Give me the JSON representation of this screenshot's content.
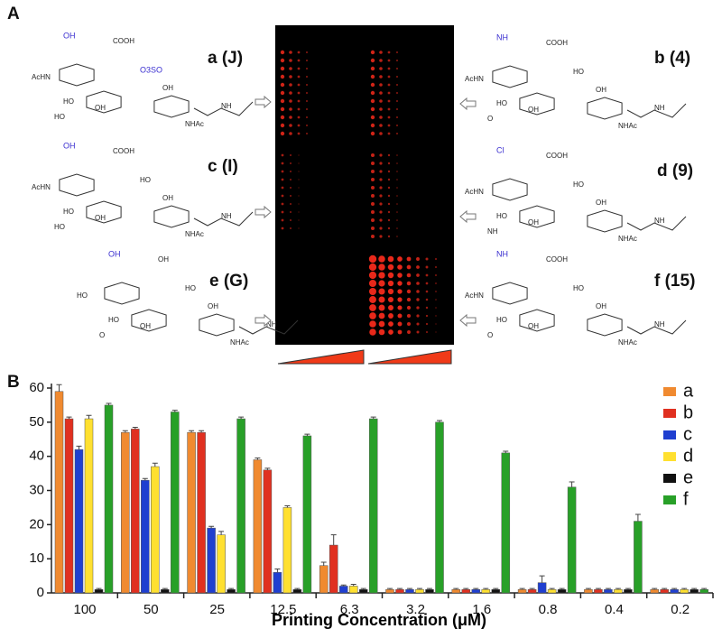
{
  "panel_a": {
    "label": "A",
    "compounds": [
      {
        "name": "a (J)",
        "groups": [
          "OH",
          "COOH",
          "AcHN",
          "HO",
          "OH",
          "O3SO",
          "NHAc",
          "NH",
          "HO",
          "OH"
        ]
      },
      {
        "name": "b (4)",
        "groups": [
          "NH",
          "COOH",
          "AcHN",
          "HO",
          "OH",
          "HO",
          "NHAc",
          "NH",
          "O",
          "OH"
        ]
      },
      {
        "name": "c (I)",
        "groups": [
          "OH",
          "COOH",
          "AcHN",
          "HO",
          "OH",
          "HO",
          "NHAc",
          "NH",
          "HO",
          "OH"
        ]
      },
      {
        "name": "d (9)",
        "groups": [
          "Cl",
          "COOH",
          "AcHN",
          "HO",
          "OH",
          "HO",
          "NHAc",
          "NH",
          "NH",
          "OH"
        ]
      },
      {
        "name": "e (G)",
        "groups": [
          "OH",
          "OH",
          "HO",
          "HO",
          "OH",
          "HO",
          "NHAc",
          "NH",
          "O",
          "OH"
        ]
      },
      {
        "name": "f (15)",
        "groups": [
          "NH",
          "COOH",
          "AcHN",
          "HO",
          "OH",
          "HO",
          "NHAc",
          "NH",
          "O",
          "OH"
        ]
      }
    ]
  },
  "chart_data": {
    "type": "bar",
    "panel_label": "B",
    "x_label": "Printing Concentration (μM)",
    "categories": [
      "100",
      "50",
      "25",
      "12.5",
      "6.3",
      "3.2",
      "1.6",
      "0.8",
      "0.4",
      "0.2"
    ],
    "series": [
      {
        "name": "a",
        "color": "#f08a30",
        "values": [
          59,
          47,
          47,
          39,
          8,
          1,
          1,
          1,
          1,
          1
        ],
        "errors": [
          2,
          0.5,
          0.5,
          0.5,
          1,
          0.3,
          0.3,
          0.3,
          0.3,
          0.3
        ]
      },
      {
        "name": "b",
        "color": "#e03020",
        "values": [
          51,
          48,
          47,
          36,
          14,
          1,
          1,
          1,
          1,
          1
        ],
        "errors": [
          0.5,
          0.5,
          0.5,
          0.5,
          3,
          0.3,
          0.3,
          0.3,
          0.3,
          0.3
        ]
      },
      {
        "name": "c",
        "color": "#1f3fd0",
        "values": [
          42,
          33,
          19,
          6,
          2,
          1,
          1,
          3,
          1,
          1
        ],
        "errors": [
          1,
          0.5,
          0.5,
          1,
          0.3,
          0.3,
          0.3,
          2,
          0.3,
          0.3
        ]
      },
      {
        "name": "d",
        "color": "#ffe030",
        "values": [
          51,
          37,
          17,
          25,
          2,
          1,
          1,
          1,
          1,
          1
        ],
        "errors": [
          1,
          1,
          1,
          0.5,
          0.5,
          0.3,
          0.3,
          0.3,
          0.3,
          0.3
        ]
      },
      {
        "name": "e",
        "color": "#111111",
        "values": [
          1,
          1,
          1,
          1,
          1,
          1,
          1,
          1,
          1,
          1
        ],
        "errors": [
          0.3,
          0.3,
          0.3,
          0.3,
          0.3,
          0.3,
          0.3,
          0.3,
          0.3,
          0.3
        ]
      },
      {
        "name": "f",
        "color": "#28a028",
        "values": [
          55,
          53,
          51,
          46,
          51,
          50,
          41,
          31,
          21,
          1
        ],
        "errors": [
          0.5,
          0.5,
          0.5,
          0.5,
          0.5,
          0.5,
          0.5,
          1.5,
          2,
          0.3
        ]
      }
    ],
    "ylim": [
      0,
      60
    ],
    "yticks": [
      0,
      10,
      20,
      30,
      40,
      50,
      60
    ],
    "legend": "upper right"
  }
}
